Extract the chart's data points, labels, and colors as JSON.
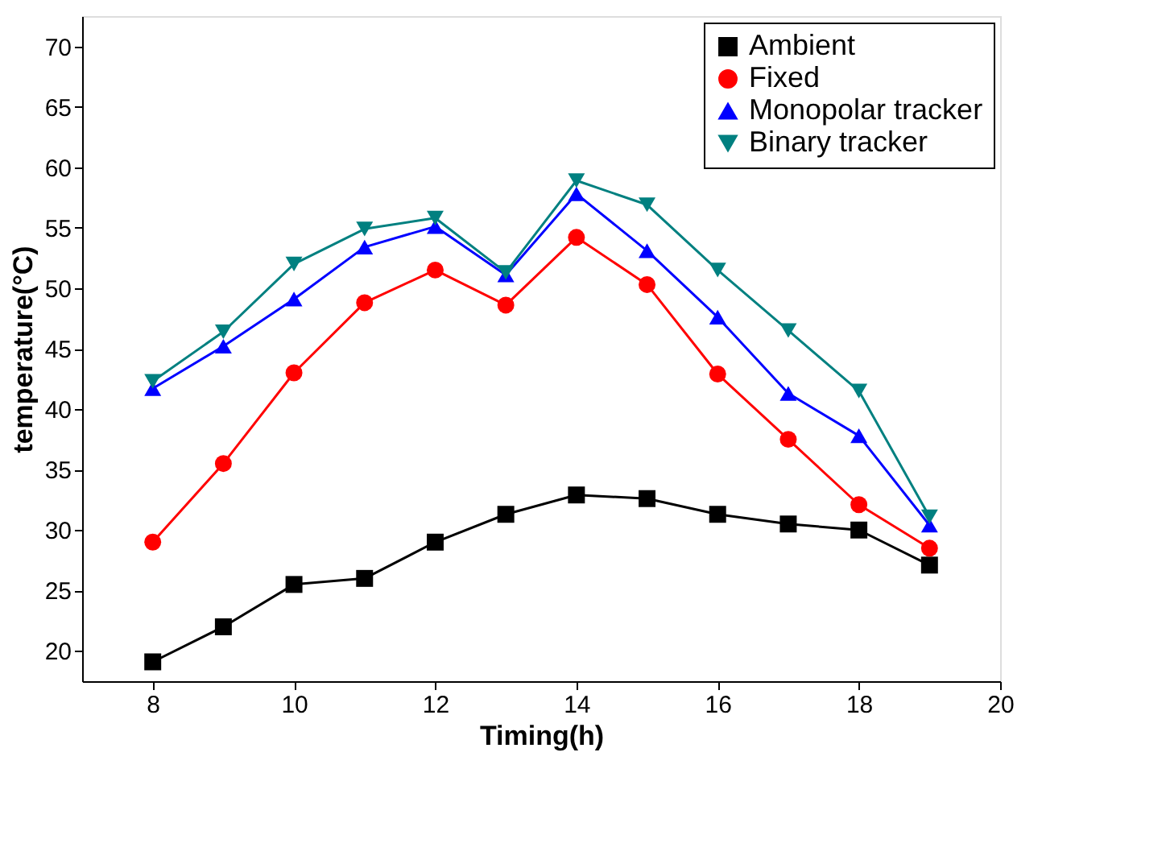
{
  "chart_data": {
    "type": "line",
    "xlabel": "Timing(h)",
    "ylabel": "temperature(°C)",
    "x": [
      8,
      9,
      10,
      11,
      12,
      13,
      14,
      15,
      16,
      17,
      18,
      19
    ],
    "series": [
      {
        "name": "Ambient",
        "color": "#000000",
        "marker": "square",
        "values": [
          19.1,
          22.0,
          25.5,
          26.0,
          29.0,
          31.3,
          32.9,
          32.6,
          31.3,
          30.5,
          30.0,
          27.1
        ]
      },
      {
        "name": "Fixed",
        "color": "#ff0000",
        "marker": "circle",
        "values": [
          29.0,
          35.5,
          43.0,
          48.8,
          51.5,
          48.6,
          54.2,
          50.3,
          42.9,
          37.5,
          32.1,
          28.5
        ]
      },
      {
        "name": "Monopolar tracker",
        "color": "#0000ff",
        "marker": "triangle-up",
        "values": [
          41.7,
          45.2,
          49.1,
          53.4,
          55.1,
          51.1,
          57.8,
          53.1,
          47.6,
          41.3,
          37.8,
          30.4
        ]
      },
      {
        "name": "Binary tracker",
        "color": "#008080",
        "marker": "triangle-down",
        "values": [
          42.3,
          46.4,
          52.0,
          54.9,
          55.8,
          51.3,
          58.9,
          56.9,
          51.5,
          46.5,
          41.5,
          31.1
        ]
      }
    ],
    "xlim": [
      7,
      20
    ],
    "xticks": [
      8,
      10,
      12,
      14,
      16,
      18,
      20
    ],
    "ylim": [
      17.5,
      72.5
    ],
    "yticks": [
      20,
      25,
      30,
      35,
      40,
      45,
      50,
      55,
      60,
      65,
      70
    ],
    "grid": false,
    "legend": "top right",
    "line_style": "solid"
  }
}
